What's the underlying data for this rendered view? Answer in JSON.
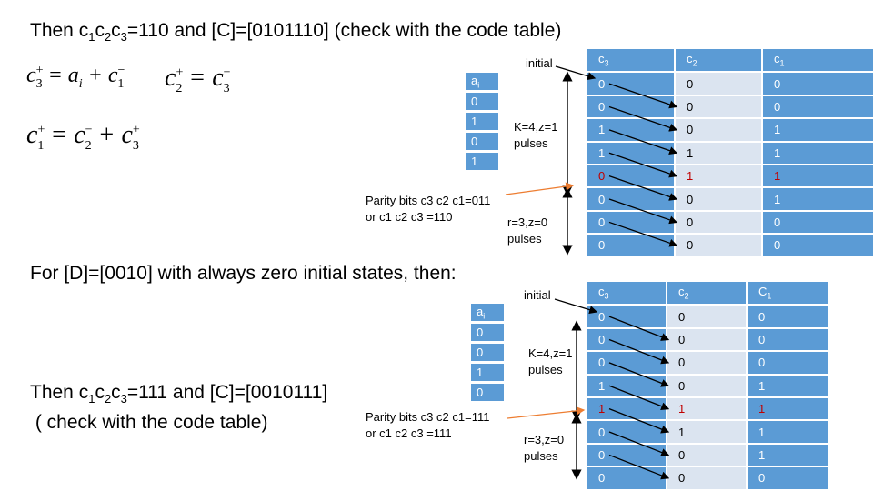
{
  "top": {
    "heading": {
      "pre": "Then c",
      "s1": "1",
      "m1": "c",
      "s2": "2",
      "m2": "c",
      "s3": "3",
      "post": "=110 and [C]=[0101110]  (check with the code table)"
    },
    "equations": {
      "eq1": {
        "lhs": "c",
        "lhs_sup": "+",
        "lhs_sub": "3",
        "eq": " = a",
        "a_sub": "i",
        "plus": " + c",
        "r_sup": "−",
        "r_sub": "1"
      },
      "eq2": {
        "lhs": "c",
        "lhs_sup": "+",
        "lhs_sub": "2",
        "eq": " = c",
        "r_sup": "−",
        "r_sub": "3"
      },
      "eq3": {
        "lhs": "c",
        "lhs_sup": "+",
        "lhs_sub": "1",
        "eq": " = c",
        "m_sup": "−",
        "m_sub": "2",
        "plus": " + c",
        "r_sup": "+",
        "r_sub": "3"
      }
    },
    "ai": {
      "header": "a",
      "header_sub": "i",
      "values": [
        "0",
        "1",
        "0",
        "1"
      ]
    },
    "labels": {
      "initial": "initial",
      "k_pulses_1": "K=4,z=1",
      "k_pulses_2": "pulses",
      "parity_1": "Parity bits c3 c2 c1=011",
      "parity_2": "or c1 c2 c3 =110",
      "r_pulses_1": "r=3,z=0",
      "r_pulses_2": "pulses"
    },
    "table": {
      "headers": [
        {
          "t": "c",
          "s": "3"
        },
        {
          "t": "c",
          "s": "2"
        },
        {
          "t": "c",
          "s": "1"
        }
      ],
      "rows": [
        [
          "0",
          "0",
          "0"
        ],
        [
          "0",
          "0",
          "0"
        ],
        [
          "1",
          "0",
          "1"
        ],
        [
          "1",
          "1",
          "1"
        ],
        [
          "0",
          "1",
          "1"
        ],
        [
          "0",
          "0",
          "1"
        ],
        [
          "0",
          "0",
          "0"
        ],
        [
          "0",
          "0",
          "0"
        ]
      ],
      "highlight_row": 4
    }
  },
  "bottom": {
    "heading": "For [D]=[0010] with always zero initial states, then:",
    "result": {
      "pre": "Then c",
      "s1": "1",
      "m1": "c",
      "s2": "2",
      "m2": "c",
      "s3": "3",
      "post": "=111 and [C]=[0010111]",
      "line2": " ( check with the code table)"
    },
    "ai": {
      "header": "a",
      "header_sub": "i",
      "values": [
        "0",
        "0",
        "1",
        "0"
      ]
    },
    "labels": {
      "initial": "initial",
      "k_pulses_1": "K=4,z=1",
      "k_pulses_2": "pulses",
      "parity_1": "Parity bits c3 c2 c1=111",
      "parity_2": "or c1 c2 c3 =111",
      "r_pulses_1": "r=3,z=0",
      "r_pulses_2": "pulses"
    },
    "table": {
      "headers": [
        {
          "t": "c",
          "s": "3"
        },
        {
          "t": "c",
          "s": "2"
        },
        {
          "t": "C",
          "s": "1"
        }
      ],
      "rows": [
        [
          "0",
          "0",
          "0"
        ],
        [
          "0",
          "0",
          "0"
        ],
        [
          "0",
          "0",
          "0"
        ],
        [
          "1",
          "0",
          "1"
        ],
        [
          "1",
          "1",
          "1"
        ],
        [
          "0",
          "1",
          "1"
        ],
        [
          "0",
          "0",
          "1"
        ],
        [
          "0",
          "0",
          "0"
        ]
      ],
      "highlight_row": 4
    }
  },
  "colors": {
    "cell_blue": "#5b9bd5",
    "cell_light": "#dbe4f0",
    "highlight": "#c00000",
    "pointer": "#ed7d31"
  }
}
